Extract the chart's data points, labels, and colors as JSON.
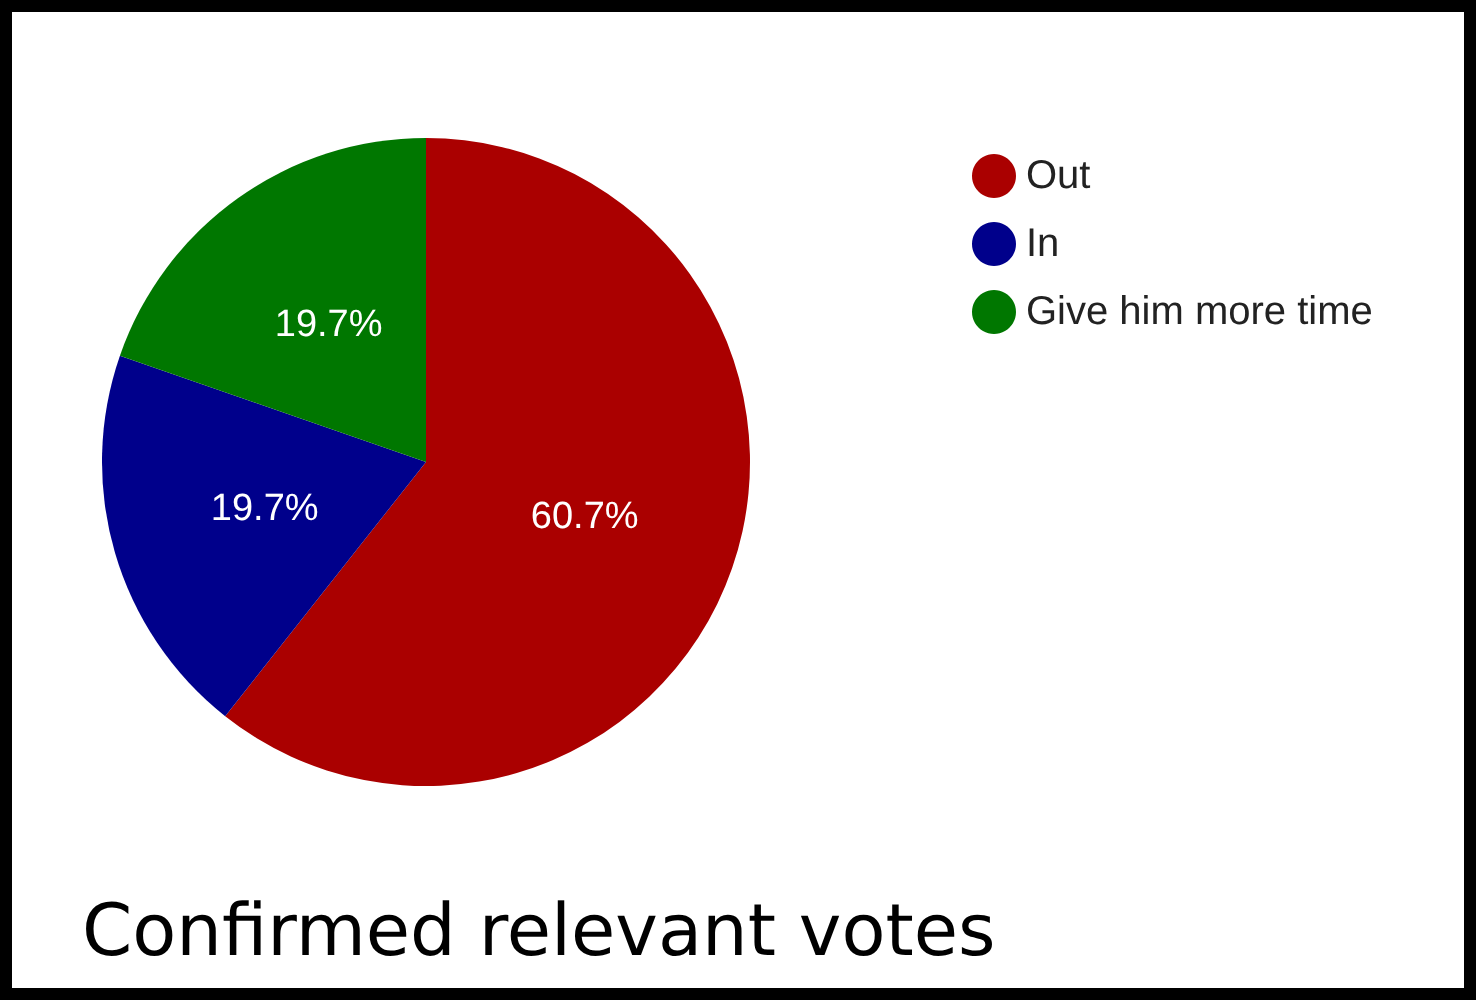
{
  "chart_data": {
    "type": "pie",
    "title": "Confirmed relevant votes",
    "categories": [
      "Out",
      "In",
      "Give him more time"
    ],
    "values": [
      60.7,
      19.7,
      19.7
    ],
    "colors": [
      "#aa0000",
      "#00008b",
      "#007700"
    ],
    "value_labels": [
      "60.7%",
      "19.7%",
      "19.7%"
    ],
    "legend": "top right"
  }
}
